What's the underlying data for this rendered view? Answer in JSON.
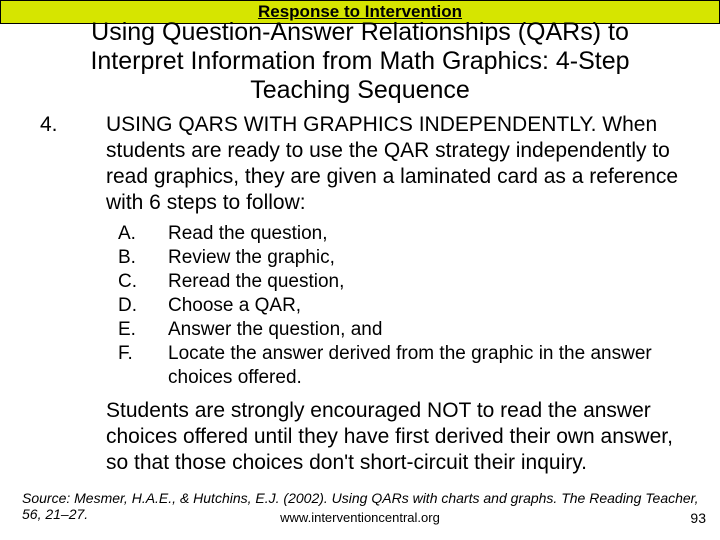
{
  "colors": {
    "header_bg": "#d6e500",
    "text": "#000000",
    "bg": "#ffffff"
  },
  "header": "Response to Intervention",
  "title": "Using Question-Answer Relationships (QARs) to Interpret Information from Math Graphics: 4-Step Teaching Sequence",
  "step_number": "4.",
  "step_text": "USING QARS WITH GRAPHICS INDEPENDENTLY. When students are ready to use the QAR strategy independently to read graphics, they are given a laminated card as a reference with 6 steps to follow:",
  "steps": {
    "a": {
      "letter": "A.",
      "text": "Read the question,"
    },
    "b": {
      "letter": "B.",
      "text": "Review the graphic,"
    },
    "c": {
      "letter": "C.",
      "text": "Reread the question,"
    },
    "d": {
      "letter": "D.",
      "text": "Choose a QAR,"
    },
    "e": {
      "letter": "E.",
      "text": "Answer the question, and"
    },
    "f": {
      "letter": "F.",
      "text": "Locate the answer derived from the graphic in the answer choices offered."
    }
  },
  "followup": "Students are strongly encouraged NOT to read the answer choices offered until they have first derived their own answer, so that those choices don't short-circuit their inquiry.",
  "source": "Source: Mesmer, H.A.E., & Hutchins, E.J. (2002). Using QARs with charts and graphs. The Reading Teacher, 56, 21–27.",
  "footer_url": "www.interventioncentral.org",
  "page_number": "93"
}
